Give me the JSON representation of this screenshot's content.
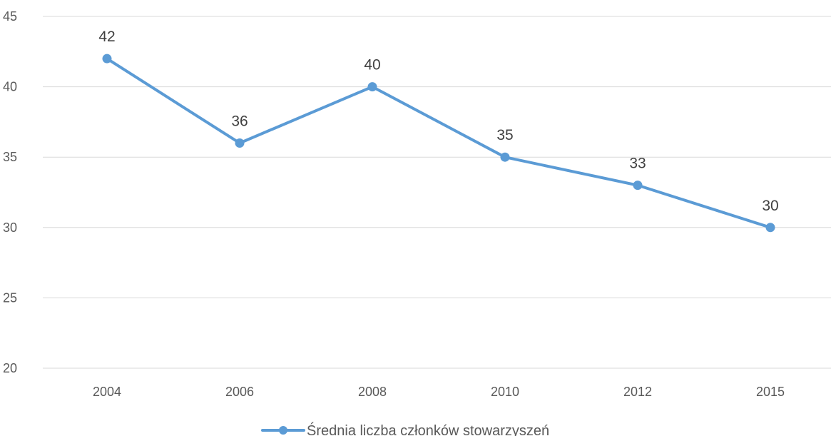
{
  "chart_data": {
    "type": "line",
    "categories": [
      "2004",
      "2006",
      "2008",
      "2010",
      "2012",
      "2015"
    ],
    "series": [
      {
        "name": "Średnia liczba członków stowarzyszeń",
        "values": [
          42,
          36,
          40,
          35,
          33,
          30
        ],
        "color": "#5b9bd5"
      }
    ],
    "ylim": [
      20,
      45
    ],
    "yticks": [
      20,
      25,
      30,
      35,
      40,
      45
    ],
    "grid": true,
    "data_labels": true,
    "legend_position": "bottom",
    "title": "",
    "xlabel": "",
    "ylabel": ""
  }
}
